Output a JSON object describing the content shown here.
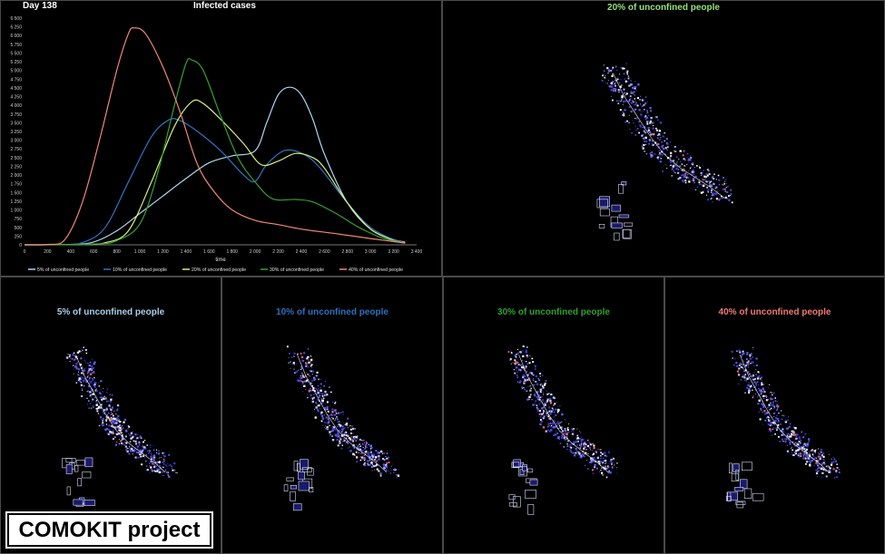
{
  "day_label": "Day 138",
  "chart_data": {
    "type": "line",
    "title": "Infected cases",
    "xlabel": "time",
    "ylabel": "",
    "xlim": [
      0,
      3400
    ],
    "ylim": [
      0,
      6500
    ],
    "x_ticks": [
      0,
      200,
      400,
      600,
      800,
      1000,
      1200,
      1400,
      1600,
      1800,
      2000,
      2200,
      2400,
      2600,
      2800,
      3000,
      3200,
      3400
    ],
    "x_tick_labels": [
      "0",
      "200",
      "400",
      "600",
      "800",
      "1 000",
      "1 200",
      "1 400",
      "1 600",
      "1 800",
      "2 000",
      "2 200",
      "2 400",
      "2 600",
      "2 800",
      "3 000",
      "3 200",
      "3 400"
    ],
    "y_ticks": [
      0,
      250,
      500,
      750,
      1000,
      1250,
      1500,
      1750,
      2000,
      2250,
      2500,
      2750,
      3000,
      3250,
      3500,
      3750,
      4000,
      4250,
      4500,
      4750,
      5000,
      5250,
      5500,
      5750,
      6000,
      6250,
      6500
    ],
    "y_tick_labels": [
      "0",
      "250",
      "500",
      "750",
      "1 000",
      "1 250",
      "1 500",
      "1 750",
      "2 000",
      "2 250",
      "2 500",
      "2 750",
      "3 000",
      "3 250",
      "3 500",
      "3 750",
      "4 000",
      "4 250",
      "4 500",
      "4 750",
      "5 000",
      "5 250",
      "5 500",
      "5 750",
      "6 000",
      "6 250",
      "6 500"
    ],
    "legend_position": "bottom",
    "series": [
      {
        "name": "5% of unconfined people",
        "color": "#a9d7f2",
        "points": [
          [
            0,
            0
          ],
          [
            400,
            10
          ],
          [
            600,
            80
          ],
          [
            800,
            400
          ],
          [
            1000,
            900
          ],
          [
            1200,
            1400
          ],
          [
            1400,
            1900
          ],
          [
            1600,
            2350
          ],
          [
            1800,
            2550
          ],
          [
            2000,
            2700
          ],
          [
            2100,
            3500
          ],
          [
            2200,
            4300
          ],
          [
            2300,
            4520
          ],
          [
            2400,
            4300
          ],
          [
            2500,
            3600
          ],
          [
            2600,
            2600
          ],
          [
            2800,
            1200
          ],
          [
            3000,
            450
          ],
          [
            3200,
            150
          ],
          [
            3300,
            80
          ]
        ]
      },
      {
        "name": "10% of unconfined people",
        "color": "#2f74c0",
        "points": [
          [
            0,
            0
          ],
          [
            300,
            10
          ],
          [
            500,
            60
          ],
          [
            700,
            500
          ],
          [
            900,
            1800
          ],
          [
            1100,
            3100
          ],
          [
            1250,
            3580
          ],
          [
            1350,
            3560
          ],
          [
            1500,
            3250
          ],
          [
            1700,
            2700
          ],
          [
            1900,
            2000
          ],
          [
            2000,
            1820
          ],
          [
            2100,
            2300
          ],
          [
            2250,
            2700
          ],
          [
            2400,
            2630
          ],
          [
            2550,
            2250
          ],
          [
            2800,
            1200
          ],
          [
            3000,
            500
          ],
          [
            3200,
            150
          ],
          [
            3300,
            70
          ]
        ]
      },
      {
        "name": "20% of unconfined people",
        "color": "#d6ef7a",
        "points": [
          [
            0,
            0
          ],
          [
            500,
            10
          ],
          [
            700,
            60
          ],
          [
            900,
            400
          ],
          [
            1100,
            1800
          ],
          [
            1300,
            3400
          ],
          [
            1450,
            4100
          ],
          [
            1550,
            4050
          ],
          [
            1700,
            3600
          ],
          [
            1900,
            2900
          ],
          [
            2050,
            2300
          ],
          [
            2200,
            2400
          ],
          [
            2350,
            2620
          ],
          [
            2500,
            2500
          ],
          [
            2600,
            2200
          ],
          [
            2800,
            1200
          ],
          [
            3000,
            450
          ],
          [
            3200,
            130
          ],
          [
            3300,
            60
          ]
        ]
      },
      {
        "name": "30% of unconfined people",
        "color": "#33a032",
        "points": [
          [
            0,
            0
          ],
          [
            600,
            20
          ],
          [
            800,
            120
          ],
          [
            1000,
            600
          ],
          [
            1150,
            2000
          ],
          [
            1300,
            4000
          ],
          [
            1400,
            5200
          ],
          [
            1450,
            5300
          ],
          [
            1550,
            5000
          ],
          [
            1700,
            3700
          ],
          [
            1850,
            2500
          ],
          [
            2000,
            1800
          ],
          [
            2150,
            1320
          ],
          [
            2350,
            1300
          ],
          [
            2500,
            1230
          ],
          [
            2700,
            900
          ],
          [
            2900,
            500
          ],
          [
            3100,
            200
          ],
          [
            3300,
            50
          ]
        ]
      },
      {
        "name": "40% of unconfined people",
        "color": "#f08878",
        "points": [
          [
            0,
            0
          ],
          [
            200,
            10
          ],
          [
            350,
            150
          ],
          [
            500,
            1200
          ],
          [
            650,
            3000
          ],
          [
            800,
            5000
          ],
          [
            900,
            6050
          ],
          [
            950,
            6220
          ],
          [
            1050,
            6050
          ],
          [
            1200,
            5100
          ],
          [
            1350,
            3800
          ],
          [
            1500,
            2300
          ],
          [
            1650,
            1500
          ],
          [
            1800,
            1000
          ],
          [
            2000,
            700
          ],
          [
            2200,
            580
          ],
          [
            2400,
            450
          ],
          [
            2700,
            320
          ],
          [
            3000,
            180
          ],
          [
            3300,
            50
          ]
        ]
      }
    ]
  },
  "maps": {
    "m20": {
      "title": "20% of unconfined people",
      "color": "#96e27c"
    },
    "m5": {
      "title": "5% of unconfined people",
      "color": "#a8cfea"
    },
    "m10": {
      "title": "10% of unconfined people",
      "color": "#2d6fbf"
    },
    "m30": {
      "title": "30% of unconfined people",
      "color": "#2ea12e"
    },
    "m40": {
      "title": "40% of unconfined people",
      "color": "#f07a72"
    }
  },
  "badge": {
    "label": "COMOKIT project"
  }
}
